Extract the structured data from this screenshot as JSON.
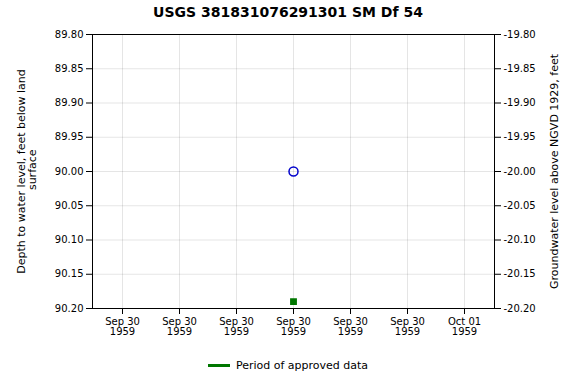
{
  "chart_data": {
    "type": "scatter",
    "title": "USGS 381831076291301 SM Df  54",
    "ylabel": "Depth to water level, feet below land\n surface",
    "y2label": "Groundwater level above NGVD 1929, feet",
    "categories": [
      "Sep 30\n1959",
      "Sep 30\n1959",
      "Sep 30\n1959",
      "Sep 30\n1959",
      "Sep 30\n1959",
      "Sep 30\n1959",
      "Oct 01\n1959"
    ],
    "series": [
      {
        "color": "#0000cc",
        "marker": "circle",
        "values": [
          null,
          null,
          null,
          90.0,
          null,
          null,
          null
        ]
      },
      {
        "name": "Period of approved data",
        "color": "#007700",
        "marker": "square",
        "values": [
          null,
          null,
          null,
          90.19,
          null,
          null,
          null
        ]
      }
    ],
    "ylim": [
      90.2,
      89.8
    ],
    "yticks": [
      {
        "value": 89.8,
        "label": "89.80"
      },
      {
        "value": 89.85,
        "label": "89.85"
      },
      {
        "value": 89.9,
        "label": "89.90"
      },
      {
        "value": 89.95,
        "label": "89.95"
      },
      {
        "value": 90.0,
        "label": "90.00"
      },
      {
        "value": 90.05,
        "label": "90.05"
      },
      {
        "value": 90.1,
        "label": "90.10"
      },
      {
        "value": 90.15,
        "label": "90.15"
      },
      {
        "value": 90.2,
        "label": "90.20"
      }
    ],
    "y2lim": [
      -20.2,
      -19.8
    ],
    "y2ticks": [
      {
        "value": -19.8,
        "label": "-19.80"
      },
      {
        "value": -19.85,
        "label": "-19.85"
      },
      {
        "value": -19.9,
        "label": "-19.90"
      },
      {
        "value": -19.95,
        "label": "-19.95"
      },
      {
        "value": -20.0,
        "label": "-20.00"
      },
      {
        "value": -20.05,
        "label": "-20.05"
      },
      {
        "value": -20.1,
        "label": "-20.10"
      },
      {
        "value": -20.15,
        "label": "-20.15"
      },
      {
        "value": -20.2,
        "label": "-20.20"
      }
    ],
    "grid": true,
    "legend": "bottom"
  }
}
